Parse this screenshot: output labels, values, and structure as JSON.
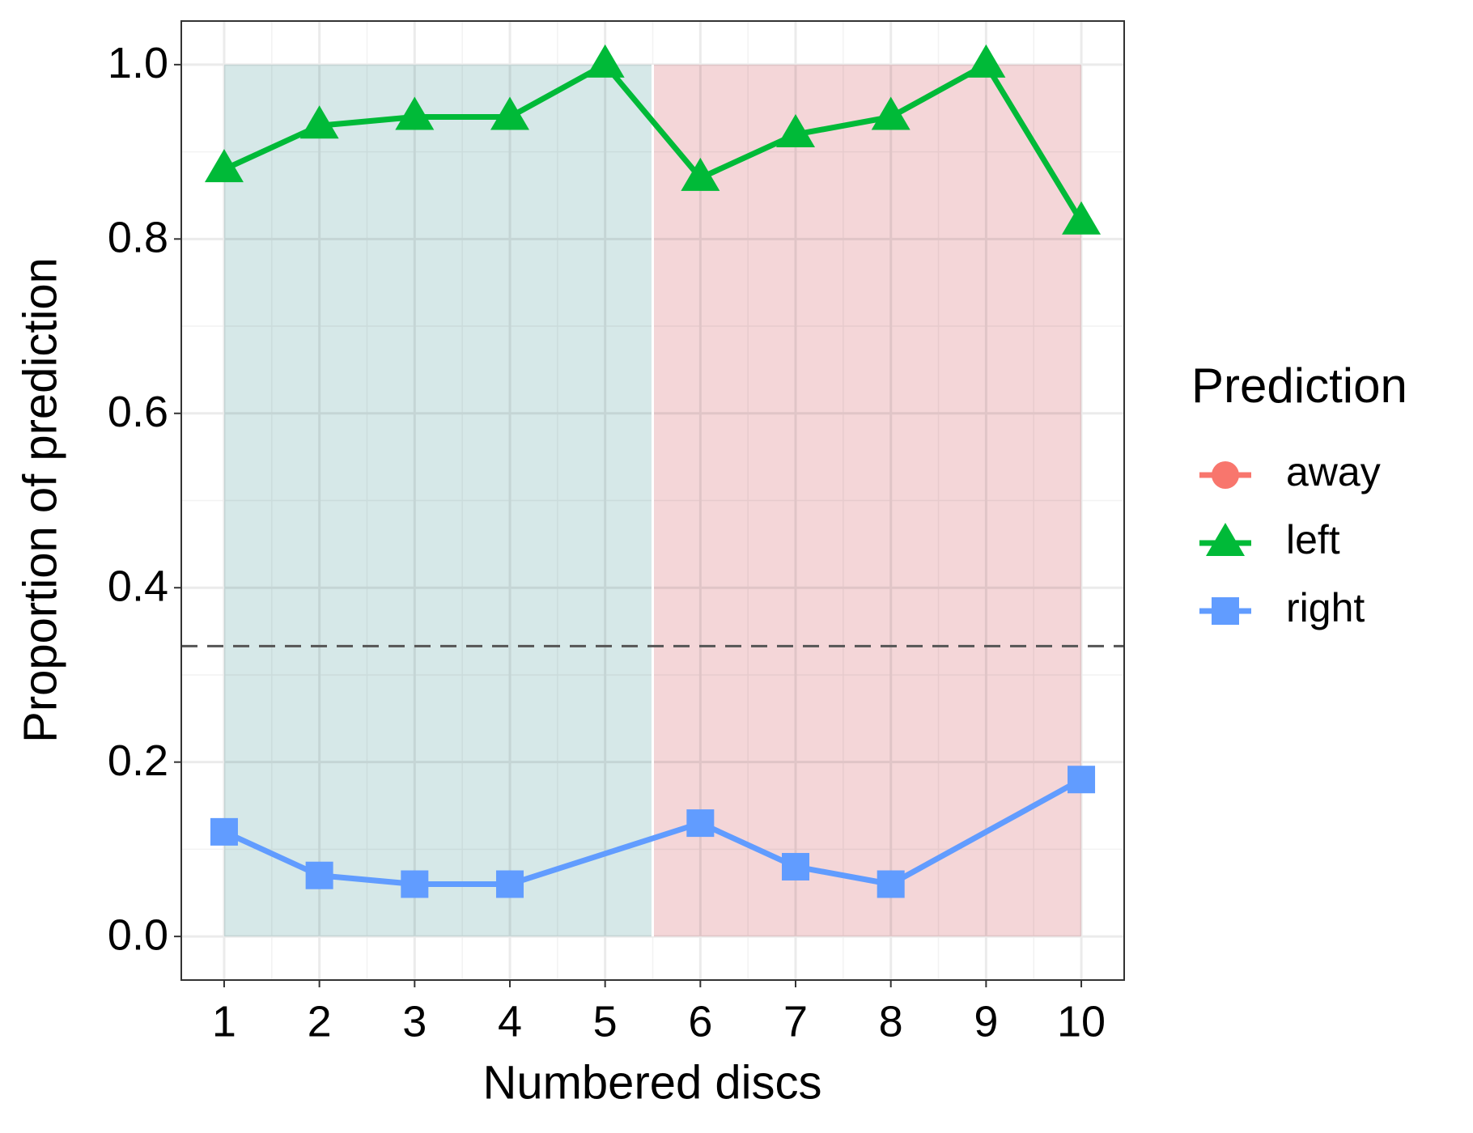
{
  "chart_data": {
    "type": "line",
    "x_label": "Numbered discs",
    "y_label": "Proportion of prediction",
    "legend_title": "Prediction",
    "x": [
      1,
      2,
      3,
      4,
      5,
      6,
      7,
      8,
      9,
      10
    ],
    "series": [
      {
        "name": "away",
        "color": "#F8766D",
        "shape": "circle",
        "x": [],
        "values": []
      },
      {
        "name": "left",
        "color": "#00BA38",
        "shape": "triangle",
        "values": [
          0.88,
          0.93,
          0.94,
          0.94,
          1.0,
          0.87,
          0.92,
          0.94,
          1.0,
          0.82
        ]
      },
      {
        "name": "right",
        "color": "#619CFF",
        "shape": "square",
        "x": [
          1,
          2,
          3,
          4,
          6,
          7,
          8,
          10
        ],
        "values": [
          0.12,
          0.07,
          0.06,
          0.06,
          0.13,
          0.08,
          0.06,
          0.18
        ]
      }
    ],
    "xlim": [
      0.55,
      10.45
    ],
    "ylim": [
      -0.05,
      1.05
    ],
    "xticks": [
      1,
      2,
      3,
      4,
      5,
      6,
      7,
      8,
      9,
      10
    ],
    "yticks": [
      {
        "value": 0,
        "label": "0.0"
      },
      0.2,
      0.4,
      0.6,
      0.8,
      {
        "value": 1,
        "label": "1.0"
      }
    ],
    "xminor": [
      1.5,
      2.5,
      3.5,
      4.5,
      5.5,
      6.5,
      7.5,
      8.5,
      9.5
    ],
    "yminor": [
      0.1,
      0.3,
      0.5,
      0.7,
      0.9
    ],
    "grid": true,
    "legend": "right",
    "hline": 0.333,
    "regions": [
      {
        "xlim": [
          1,
          5.5
        ],
        "ylim": [
          0,
          1
        ],
        "color": "#d6e8e8"
      },
      {
        "xlim": [
          5.5,
          10
        ],
        "ylim": [
          0,
          1
        ],
        "color": "#f4d6d8"
      }
    ]
  }
}
